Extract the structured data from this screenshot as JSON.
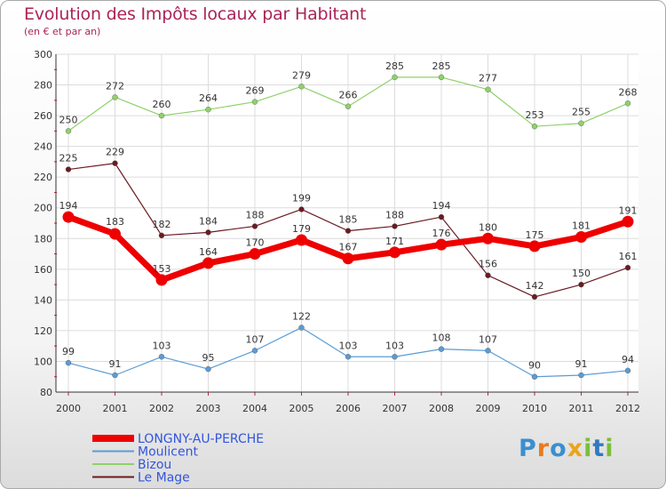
{
  "chart_data": {
    "type": "line",
    "title": "Evolution des Impôts locaux par Habitant",
    "subtitle": "(en € et par an)",
    "xlabel": "",
    "ylabel": "",
    "x": [
      "2000",
      "2001",
      "2002",
      "2003",
      "2004",
      "2005",
      "2006",
      "2007",
      "2008",
      "2009",
      "2010",
      "2011",
      "2012"
    ],
    "ylim": [
      80,
      300
    ],
    "yticks": [
      80,
      100,
      120,
      140,
      160,
      180,
      200,
      220,
      240,
      260,
      280,
      300
    ],
    "grid": true,
    "legend_position": "bottom-left",
    "series": [
      {
        "name": "LONGNY-AU-PERCHE",
        "color": "#ee0000",
        "values": [
          194,
          183,
          153,
          164,
          170,
          179,
          167,
          171,
          176,
          180,
          175,
          181,
          191
        ]
      },
      {
        "name": "Moulicent",
        "color": "#5b9bd5",
        "values": [
          99,
          91,
          103,
          95,
          107,
          122,
          103,
          103,
          108,
          107,
          90,
          91,
          94
        ]
      },
      {
        "name": "Bizou",
        "color": "#8fd16a",
        "values": [
          250,
          272,
          260,
          264,
          269,
          279,
          266,
          285,
          285,
          277,
          253,
          255,
          268
        ]
      },
      {
        "name": "Le Mage",
        "color": "#6b1a22",
        "values": [
          225,
          229,
          182,
          184,
          188,
          199,
          185,
          188,
          194,
          156,
          142,
          150,
          161
        ]
      }
    ]
  },
  "logo": {
    "letters": [
      "P",
      "r",
      "o",
      "x",
      "i",
      "t",
      "i"
    ],
    "colors": [
      "#3a8fd0",
      "#e97a1e",
      "#3a8fd0",
      "#e9a51e",
      "#7bbf3a",
      "#2f7ac0",
      "#7bbf3a"
    ]
  }
}
